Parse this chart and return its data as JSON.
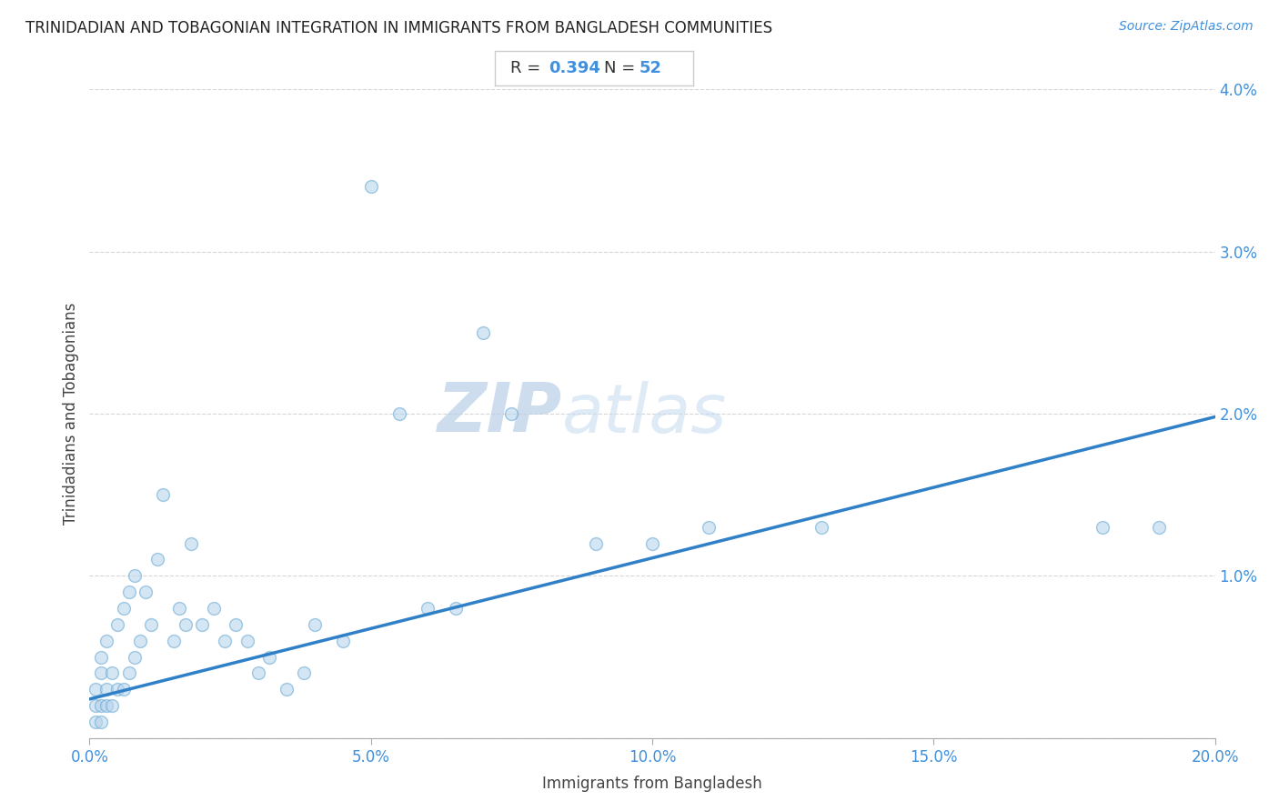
{
  "title": "TRINIDADIAN AND TOBAGONIAN INTEGRATION IN IMMIGRANTS FROM BANGLADESH COMMUNITIES",
  "source": "Source: ZipAtlas.com",
  "xlabel": "Immigrants from Bangladesh",
  "ylabel": "Trinidadians and Tobagonians",
  "R": 0.394,
  "N": 52,
  "xlim": [
    0.0,
    0.2
  ],
  "ylim": [
    0.0,
    0.04
  ],
  "xticks": [
    0.0,
    0.05,
    0.1,
    0.15,
    0.2
  ],
  "yticks": [
    0.0,
    0.01,
    0.02,
    0.03,
    0.04
  ],
  "ytick_labels": [
    "",
    "1.0%",
    "2.0%",
    "3.0%",
    "4.0%"
  ],
  "xtick_labels": [
    "0.0%",
    "5.0%",
    "10.0%",
    "15.0%",
    "20.0%"
  ],
  "scatter_color": "#b8d4ec",
  "scatter_edge_color": "#6aaad4",
  "line_color": "#3080c8",
  "annotation_text_color": "#333333",
  "annotation_value_color": "#4090dd",
  "watermark_color": "#d0e4f4",
  "background_color": "#ffffff",
  "grid_color": "#cccccc",
  "scatter_alpha": 0.6,
  "scatter_size": 100,
  "x_data": [
    0.001,
    0.001,
    0.001,
    0.002,
    0.002,
    0.002,
    0.002,
    0.003,
    0.003,
    0.003,
    0.004,
    0.004,
    0.005,
    0.005,
    0.006,
    0.006,
    0.007,
    0.007,
    0.008,
    0.008,
    0.009,
    0.01,
    0.011,
    0.012,
    0.013,
    0.015,
    0.016,
    0.017,
    0.018,
    0.02,
    0.022,
    0.024,
    0.026,
    0.028,
    0.03,
    0.032,
    0.035,
    0.038,
    0.04,
    0.045,
    0.05,
    0.055,
    0.06,
    0.065,
    0.07,
    0.075,
    0.09,
    0.1,
    0.11,
    0.13,
    0.18,
    0.19
  ],
  "y_data": [
    0.001,
    0.002,
    0.003,
    0.001,
    0.002,
    0.004,
    0.005,
    0.002,
    0.003,
    0.006,
    0.002,
    0.004,
    0.003,
    0.007,
    0.003,
    0.008,
    0.004,
    0.009,
    0.005,
    0.01,
    0.006,
    0.009,
    0.007,
    0.011,
    0.015,
    0.006,
    0.008,
    0.007,
    0.012,
    0.007,
    0.008,
    0.006,
    0.007,
    0.006,
    0.004,
    0.005,
    0.003,
    0.004,
    0.007,
    0.006,
    0.034,
    0.02,
    0.008,
    0.008,
    0.025,
    0.02,
    0.012,
    0.012,
    0.013,
    0.013,
    0.013,
    0.013
  ],
  "line_x": [
    0.0,
    0.2
  ],
  "line_y": [
    0.0024,
    0.0198
  ]
}
